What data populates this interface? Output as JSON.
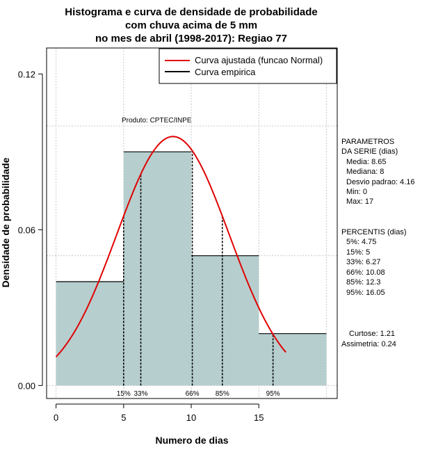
{
  "chart_data": {
    "type": "bar",
    "title_lines": [
      "Histograma e curva de densidade de probabilidade",
      "com chuva acima de 5 mm",
      "no mes de abril (1998-2017): Regiao 77"
    ],
    "xlabel": "Numero de dias",
    "ylabel": "Densidade de probabilidade",
    "xlim": [
      -0.7,
      20.8
    ],
    "ylim": [
      -0.005,
      0.13
    ],
    "x_ticks": [
      0,
      5,
      10,
      15
    ],
    "y_ticks": [
      0.0,
      0.06,
      0.12
    ],
    "y_tick_labels": [
      "0.00",
      "0.06",
      "0.12"
    ],
    "hgrid": [
      0.0,
      0.05,
      0.1
    ],
    "vgrid": [
      0,
      5,
      10,
      15,
      20
    ],
    "bins": [
      {
        "from": 0,
        "to": 5,
        "density": 0.04
      },
      {
        "from": 5,
        "to": 10,
        "density": 0.09
      },
      {
        "from": 10,
        "to": 15,
        "density": 0.05
      },
      {
        "from": 15,
        "to": 20,
        "density": 0.02
      }
    ],
    "bar_color": "#b6cece",
    "normal_curve": {
      "mean": 8.65,
      "sd": 4.16,
      "x_range": [
        0,
        17
      ],
      "color": "#e00000"
    },
    "empirical_color": "#000000",
    "percentile_marks": [
      {
        "x": 5,
        "label": "15%"
      },
      {
        "x": 6.27,
        "label": "33%"
      },
      {
        "x": 10.08,
        "label": "66%"
      },
      {
        "x": 12.3,
        "label": "85%"
      },
      {
        "x": 16.05,
        "label": "95%"
      }
    ],
    "legend": {
      "position": "top-right",
      "items": [
        {
          "label": "Curva ajustada (funcao Normal)",
          "color": "#e00000"
        },
        {
          "label": "Curva empirica",
          "color": "#000000"
        }
      ]
    },
    "annotation": "Produto: CPTEC/INPE",
    "parametros": {
      "header": [
        "PARAMETROS",
        "DA SERIE (dias)"
      ],
      "lines": [
        "Media: 8.65",
        "Mediana: 8",
        "Desvio padrao: 4.16",
        "Min: 0",
        "Max: 17"
      ]
    },
    "percentis": {
      "header": "PERCENTIS (dias)",
      "lines": [
        "5%: 4.75",
        "15%: 5",
        "33%: 6.27",
        "66%: 10.08",
        "85%: 12.3",
        "95%: 16.05"
      ]
    },
    "curtose": "Curtose: 1.21",
    "assimetria": "Assimetria: 0.24"
  }
}
